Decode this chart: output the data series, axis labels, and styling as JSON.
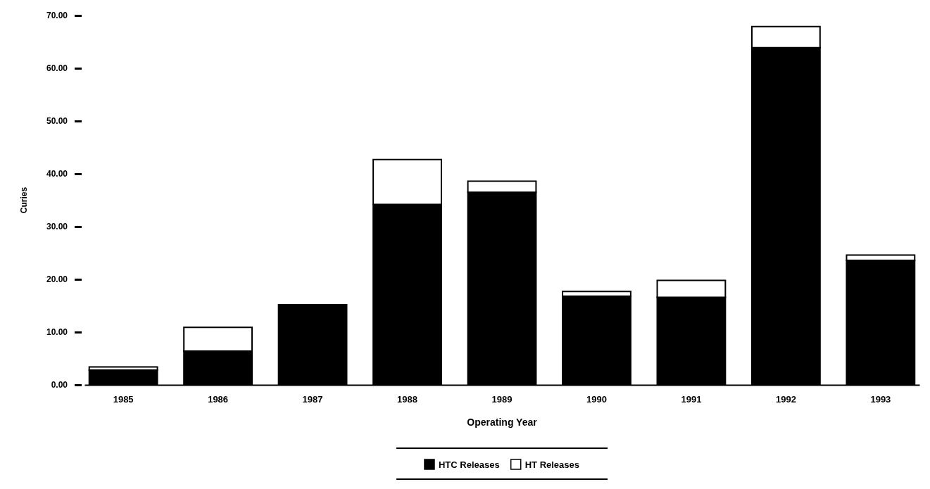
{
  "chart_data": {
    "type": "bar",
    "stacked": true,
    "xlabel": "Operating Year",
    "ylabel": "Curies",
    "categories": [
      "1985",
      "1986",
      "1987",
      "1988",
      "1989",
      "1990",
      "1991",
      "1992",
      "1993"
    ],
    "series": [
      {
        "name": "HTC Releases",
        "color": "#000000",
        "values": [
          2.8,
          6.4,
          15.2,
          34.2,
          36.5,
          16.8,
          16.6,
          63.9,
          23.6
        ]
      },
      {
        "name": "HT Releases",
        "color": "#ffffff",
        "values": [
          0.6,
          4.5,
          0,
          8.5,
          2.1,
          0.9,
          3.2,
          4.0,
          1.0
        ]
      }
    ],
    "ylim": [
      0,
      70
    ],
    "yticks": [
      {
        "value": 0,
        "label": "0.00"
      },
      {
        "value": 10,
        "label": "10.00"
      },
      {
        "value": 20,
        "label": "20.00"
      },
      {
        "value": 30,
        "label": "30.00"
      },
      {
        "value": 40,
        "label": "40.00"
      },
      {
        "value": 50,
        "label": "50.00"
      },
      {
        "value": 60,
        "label": "60.00"
      },
      {
        "value": 70,
        "label": "70.00"
      }
    ],
    "legend": "bottom"
  }
}
